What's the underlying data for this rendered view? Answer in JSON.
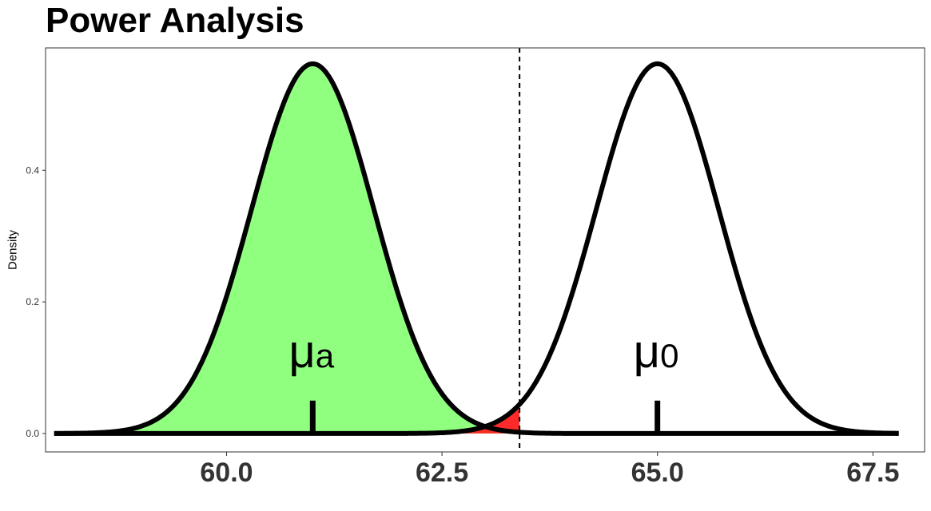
{
  "title": "Power Analysis",
  "chart_data": {
    "type": "area",
    "title": "Power Analysis",
    "xlabel": "",
    "ylabel": "Density",
    "xlim": [
      57.9,
      68.1
    ],
    "ylim": [
      -0.028,
      0.586
    ],
    "x_ticks": [
      60.0,
      62.5,
      65.0,
      67.5
    ],
    "x_tick_labels": [
      "60.0",
      "62.5",
      "65.0",
      "67.5"
    ],
    "y_ticks": [
      0.0,
      0.2,
      0.4
    ],
    "y_tick_labels": [
      "0.0",
      "0.2",
      "0.4"
    ],
    "grid": false,
    "critical_value": 63.4,
    "series": [
      {
        "mean": 61.0,
        "sd": 0.71,
        "x_range": [
          58.0,
          67.8
        ],
        "fill_to": 63.4,
        "fill_color": "#90FF80"
      },
      {
        "mean": 65.0,
        "sd": 0.71,
        "x_range": [
          58.0,
          67.8
        ],
        "fill_color": "#FF2020"
      }
    ],
    "annotations": [
      {
        "symbol": "μ",
        "subscript": "a",
        "x": 61.0
      },
      {
        "symbol": "μ",
        "subscript": "0",
        "x": 65.0
      }
    ],
    "colors": {
      "power": "#90FF80",
      "alpha": "#FF2020",
      "line": "#000000"
    }
  }
}
